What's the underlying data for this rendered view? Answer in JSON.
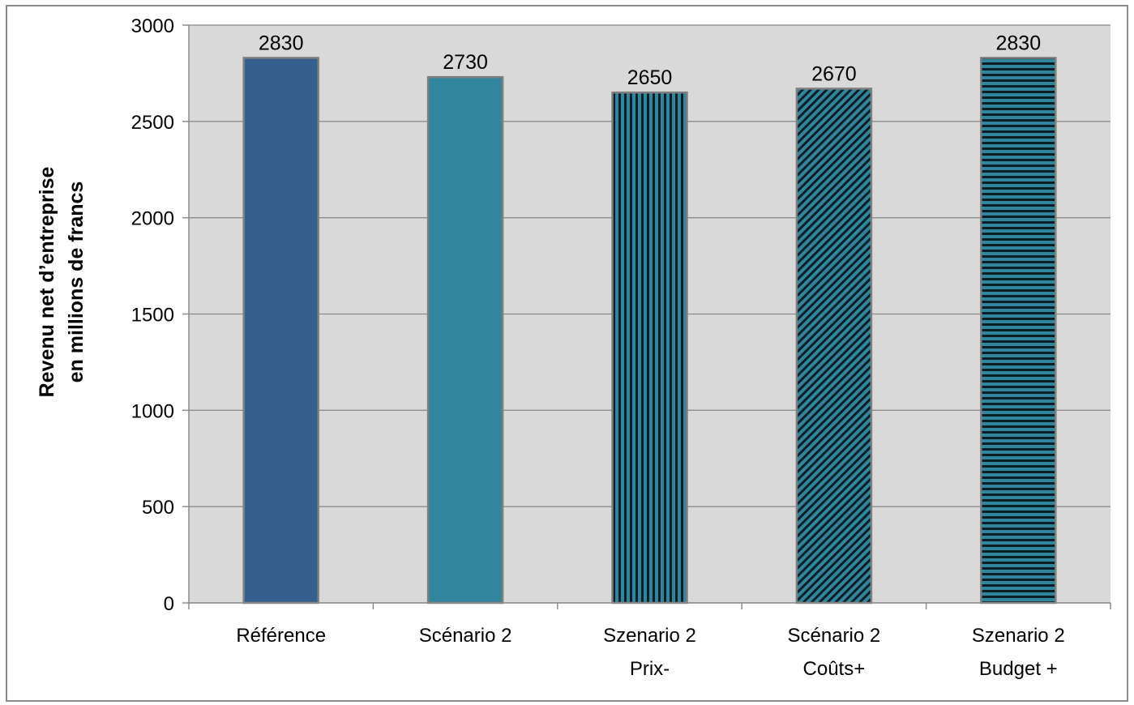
{
  "chart_data": {
    "type": "bar",
    "ylabel": [
      "Revenu net d’entreprise",
      "en millions de francs"
    ],
    "ylim": [
      0,
      3000
    ],
    "yticks": [
      0,
      500,
      1000,
      1500,
      2000,
      2500,
      3000
    ],
    "grid": true,
    "categories": [
      [
        "Référence"
      ],
      [
        "Scénario 2"
      ],
      [
        "Szenario 2",
        "Prix-"
      ],
      [
        "Scénario 2",
        "Coûts+"
      ],
      [
        "Szenario 2",
        "Budget +"
      ]
    ],
    "values": [
      2830,
      2730,
      2650,
      2670,
      2830
    ],
    "data_labels": [
      "2830",
      "2730",
      "2650",
      "2670",
      "2830"
    ],
    "bar_styles": [
      {
        "fill": "#355f8d",
        "pattern": "solid"
      },
      {
        "fill": "#31859c",
        "pattern": "solid"
      },
      {
        "fill": "#31859c",
        "pattern": "vertical-stripes"
      },
      {
        "fill": "#31859c",
        "pattern": "diagonal-stripes"
      },
      {
        "fill": "#31859c",
        "pattern": "horizontal-stripes"
      }
    ],
    "plot_background": "#d9d9d9"
  }
}
